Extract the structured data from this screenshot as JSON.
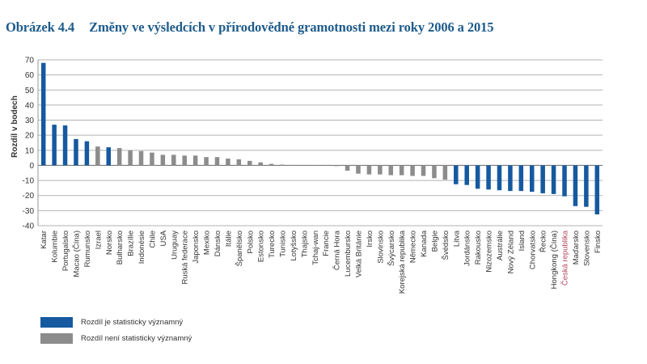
{
  "figure": {
    "number": "Obrázek 4.4",
    "title": "Změny ve výsledcích v přírodovědné gramotnosti mezi roky 2006 a 2015"
  },
  "legend": [
    {
      "label": "Rozdíl je statisticky významný",
      "color": "#1559a0"
    },
    {
      "label": "Rozdíl není statisticky významný",
      "color": "#8c8c8c"
    }
  ],
  "colors": {
    "significant": "#1559a0",
    "not_significant": "#8c8c8c",
    "highlight_label": "#b0425a",
    "title": "#1d5b8c",
    "grid": "#b3b3b3"
  },
  "chart_data": {
    "type": "bar",
    "title": "Změny ve výsledcích v přírodovědné gramotnosti mezi roky 2006 a 2015",
    "xlabel": "",
    "ylabel": "Rozdíl v bodech",
    "ylim": [
      -40,
      70
    ],
    "yticks": [
      -40,
      -30,
      -20,
      -10,
      0,
      10,
      20,
      30,
      40,
      50,
      60,
      70
    ],
    "grid": true,
    "legend_position": "bottom-left",
    "highlight_category": "Česká republika",
    "categories": [
      "Katar",
      "Kolumbie",
      "Portugalsko",
      "Macao (Čína)",
      "Rumunsko",
      "Izrael",
      "Norsko",
      "Bulharsko",
      "Brazílie",
      "Indonésie",
      "Chile",
      "USA",
      "Uruguay",
      "Ruská federace",
      "Japonsko",
      "Mexiko",
      "Dánsko",
      "Itálie",
      "Španělsko",
      "Polsko",
      "Estonsko",
      "Turecko",
      "Tunisko",
      "Lotyšsko",
      "Thajsko",
      "Tchaj-wan",
      "Francie",
      "Černá Hora",
      "Lucembursko",
      "Velká Británie",
      "Irsko",
      "Slovinsko",
      "Švýcarsko",
      "Korejská republika",
      "Německo",
      "Kanada",
      "Belgie",
      "Švédsko",
      "Litva",
      "Jordánsko",
      "Rakousko",
      "Nizozemsko",
      "Austrálie",
      "Nový Zéland",
      "Island",
      "Chorvatsko",
      "Řecko",
      "Hongkong (Čína)",
      "Česká republika",
      "Maďarsko",
      "Slovensko",
      "Finsko"
    ],
    "values": [
      68,
      27,
      26.5,
      17.5,
      16,
      12.5,
      12,
      11.5,
      10,
      9.5,
      8.5,
      7,
      7,
      6.5,
      6.5,
      5.5,
      5.5,
      4.5,
      4,
      3,
      2,
      1,
      0.5,
      0.3,
      0,
      0,
      0,
      -0.5,
      -3.5,
      -5.5,
      -6,
      -6,
      -6.5,
      -6.5,
      -7,
      -7,
      -8.5,
      -9.5,
      -12.5,
      -13,
      -15.5,
      -16,
      -16.5,
      -17,
      -17,
      -17.5,
      -18.5,
      -19,
      -20.5,
      -27,
      -27.5,
      -32.5
    ],
    "significant": [
      true,
      true,
      true,
      true,
      true,
      false,
      true,
      false,
      false,
      false,
      false,
      false,
      false,
      false,
      false,
      false,
      false,
      false,
      false,
      false,
      false,
      false,
      false,
      false,
      false,
      false,
      false,
      false,
      false,
      false,
      false,
      false,
      false,
      false,
      false,
      false,
      false,
      false,
      true,
      true,
      true,
      true,
      true,
      true,
      true,
      true,
      true,
      true,
      true,
      true,
      true,
      true
    ],
    "series": [
      {
        "name": "Rozdíl je statisticky významný",
        "color": "#1559a0"
      },
      {
        "name": "Rozdíl není statisticky významný",
        "color": "#8c8c8c"
      }
    ]
  }
}
